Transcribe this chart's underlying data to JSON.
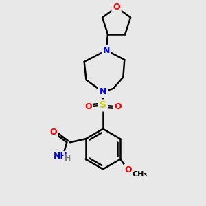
{
  "bg_color": "#e8e8e8",
  "atom_colors": {
    "O": "#ff0000",
    "N": "#0000ff",
    "S": "#cccc00",
    "C": "#000000",
    "H": "#808080"
  },
  "bond_color": "#000000",
  "bond_width": 1.8,
  "font_size_atom": 9,
  "fig_width": 3.0,
  "fig_height": 3.0,
  "dpi": 100,
  "bg_rect_color": "#e8e8e8"
}
